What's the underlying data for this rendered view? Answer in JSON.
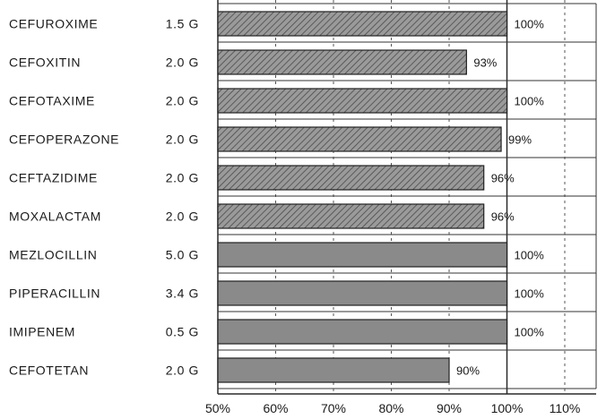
{
  "chart_data": {
    "type": "bar",
    "orientation": "horizontal",
    "title": "",
    "xlabel": "",
    "ylabel": "",
    "xlim": [
      50,
      110
    ],
    "xticks": [
      50,
      60,
      70,
      80,
      90,
      100,
      110
    ],
    "xtick_labels": [
      "50%",
      "60%",
      "70%",
      "80%",
      "90%",
      "100%",
      "110%"
    ],
    "grid": true,
    "legend": "none",
    "bar_color": "#8a8a8a",
    "categories": [
      {
        "drug": "CEFUROXIME",
        "dose": "1.5 G"
      },
      {
        "drug": "CEFOXITIN",
        "dose": "2.0 G"
      },
      {
        "drug": "CEFOTAXIME",
        "dose": "2.0 G"
      },
      {
        "drug": "CEFOPERAZONE",
        "dose": "2.0 G"
      },
      {
        "drug": "CEFTAZIDIME",
        "dose": "2.0 G"
      },
      {
        "drug": "MOXALACTAM",
        "dose": "2.0 G"
      },
      {
        "drug": "MEZLOCILLIN",
        "dose": "5.0 G"
      },
      {
        "drug": "PIPERACILLIN",
        "dose": "3.4 G"
      },
      {
        "drug": "IMIPENEM",
        "dose": "0.5 G"
      },
      {
        "drug": "CEFOTETAN",
        "dose": "2.0 G"
      }
    ],
    "values": [
      100,
      93,
      100,
      99,
      96,
      96,
      100,
      100,
      100,
      90
    ],
    "value_labels": [
      "100%",
      "93%",
      "100%",
      "99%",
      "96%",
      "96%",
      "100%",
      "100%",
      "100%",
      "90%"
    ]
  }
}
